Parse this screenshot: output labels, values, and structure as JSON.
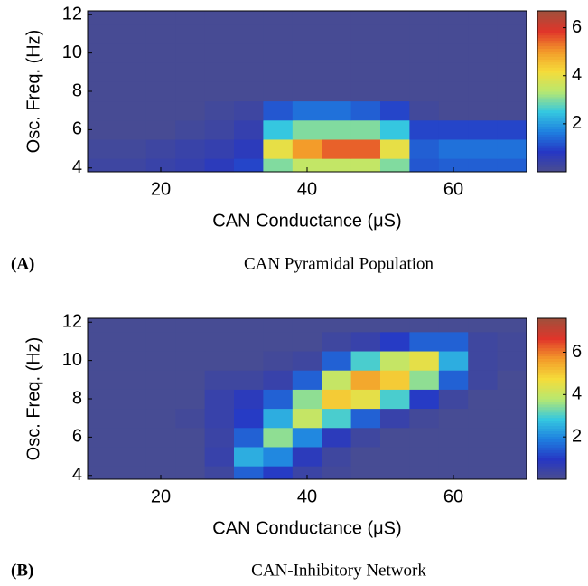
{
  "chart_data": [
    {
      "type": "heatmap",
      "panel_label": "(A)",
      "caption": "CAN Pyramidal Population",
      "x_label": "CAN Conductance (μS)",
      "y_label": "Osc. Freq. (Hz)",
      "xlim": [
        10,
        70
      ],
      "xticks": [
        20,
        40,
        60
      ],
      "ylim": [
        3.8,
        12.2
      ],
      "yticks": [
        4,
        6,
        8,
        10,
        12
      ],
      "x_bins": [
        10,
        14,
        18,
        22,
        26,
        30,
        34,
        38,
        42,
        46,
        50,
        54,
        58,
        62,
        66,
        70
      ],
      "y_bins": [
        3.8,
        4.5,
        5.5,
        6.5,
        7.5,
        8.5,
        9.5,
        10.5,
        11.5,
        12.2
      ],
      "z": [
        [
          0.3,
          0.3,
          0.4,
          0.5,
          0.7,
          1.0,
          3.0,
          3.5,
          3.5,
          3.5,
          3.0,
          1.2,
          1.3,
          1.3,
          1.3
        ],
        [
          0.2,
          0.2,
          0.3,
          0.4,
          0.5,
          0.7,
          4.0,
          5.0,
          5.5,
          5.5,
          4.0,
          1.3,
          1.5,
          1.5,
          1.5
        ],
        [
          0.1,
          0.1,
          0.1,
          0.2,
          0.3,
          0.5,
          2.5,
          3.0,
          3.0,
          3.0,
          2.5,
          1.0,
          1.0,
          1.0,
          1.0
        ],
        [
          0.1,
          0.1,
          0.1,
          0.1,
          0.2,
          0.3,
          1.2,
          1.5,
          1.5,
          1.3,
          1.0,
          0.2,
          0.1,
          0.1,
          0.1
        ],
        [
          0.1,
          0.1,
          0.1,
          0.1,
          0.1,
          0.1,
          0.1,
          0.1,
          0.1,
          0.1,
          0.1,
          0.1,
          0.1,
          0.1,
          0.1
        ],
        [
          0.1,
          0.1,
          0.1,
          0.1,
          0.1,
          0.1,
          0.1,
          0.1,
          0.1,
          0.1,
          0.1,
          0.1,
          0.1,
          0.1,
          0.1
        ],
        [
          0.1,
          0.1,
          0.1,
          0.1,
          0.1,
          0.1,
          0.1,
          0.1,
          0.1,
          0.1,
          0.1,
          0.1,
          0.1,
          0.1,
          0.1
        ],
        [
          0.1,
          0.1,
          0.1,
          0.1,
          0.1,
          0.1,
          0.1,
          0.1,
          0.1,
          0.1,
          0.1,
          0.1,
          0.1,
          0.1,
          0.1
        ],
        [
          0.1,
          0.1,
          0.1,
          0.1,
          0.1,
          0.1,
          0.1,
          0.1,
          0.1,
          0.1,
          0.1,
          0.1,
          0.1,
          0.1,
          0.1
        ]
      ],
      "zlim": [
        0,
        6.7
      ],
      "zticks": [
        2,
        4,
        6
      ],
      "colormap": [
        "#4b4e8e",
        "#2637c4",
        "#1f80e0",
        "#35c8e0",
        "#b8e870",
        "#f5dc3a",
        "#f39a2a",
        "#e0352a",
        "#a0503c"
      ]
    },
    {
      "type": "heatmap",
      "panel_label": "(B)",
      "caption": "CAN-Inhibitory Network",
      "x_label": "CAN Conductance (μS)",
      "y_label": "Osc. Freq. (Hz)",
      "xlim": [
        10,
        70
      ],
      "xticks": [
        20,
        40,
        60
      ],
      "ylim": [
        3.8,
        12.2
      ],
      "yticks": [
        4,
        6,
        8,
        10,
        12
      ],
      "x_bins": [
        10,
        14,
        18,
        22,
        26,
        30,
        34,
        38,
        42,
        46,
        50,
        54,
        58,
        62,
        66,
        70
      ],
      "y_bins": [
        3.8,
        4.5,
        5.5,
        6.5,
        7.5,
        8.5,
        9.5,
        10.5,
        11.5,
        12.2
      ],
      "z": [
        [
          0.1,
          0.1,
          0.1,
          0.1,
          0.3,
          1.5,
          1.0,
          0.4,
          0.2,
          0.1,
          0.1,
          0.1,
          0.1,
          0.1,
          0.1
        ],
        [
          0.1,
          0.1,
          0.1,
          0.1,
          0.5,
          2.5,
          2.0,
          0.8,
          0.3,
          0.1,
          0.1,
          0.1,
          0.1,
          0.1,
          0.1
        ],
        [
          0.1,
          0.1,
          0.1,
          0.1,
          0.4,
          1.5,
          3.5,
          2.0,
          0.8,
          0.3,
          0.1,
          0.1,
          0.1,
          0.1,
          0.1
        ],
        [
          0.1,
          0.1,
          0.1,
          0.2,
          0.5,
          1.0,
          2.5,
          4.0,
          3.0,
          1.5,
          0.5,
          0.2,
          0.1,
          0.1,
          0.1
        ],
        [
          0.1,
          0.1,
          0.1,
          0.1,
          0.5,
          0.8,
          1.5,
          3.5,
          5.0,
          4.5,
          3.0,
          1.0,
          0.3,
          0.1,
          0.1
        ],
        [
          0.1,
          0.1,
          0.1,
          0.1,
          0.3,
          0.3,
          0.5,
          1.5,
          4.0,
          5.5,
          5.0,
          3.5,
          1.5,
          0.3,
          0.1
        ],
        [
          0.1,
          0.1,
          0.1,
          0.1,
          0.1,
          0.1,
          0.2,
          0.3,
          1.5,
          3.0,
          4.0,
          4.5,
          2.5,
          0.3,
          0.2
        ],
        [
          0.1,
          0.1,
          0.1,
          0.1,
          0.1,
          0.1,
          0.1,
          0.1,
          0.3,
          0.5,
          1.0,
          1.5,
          1.5,
          0.3,
          0.2
        ],
        [
          0.1,
          0.1,
          0.1,
          0.1,
          0.1,
          0.1,
          0.1,
          0.1,
          0.1,
          0.1,
          0.1,
          0.1,
          0.1,
          0.1,
          0.1
        ]
      ],
      "zlim": [
        0,
        7.6
      ],
      "zticks": [
        2,
        4,
        6
      ],
      "colormap": [
        "#4b4e8e",
        "#2637c4",
        "#1f80e0",
        "#35c8e0",
        "#b8e870",
        "#f5dc3a",
        "#f39a2a",
        "#e0352a",
        "#a0503c"
      ]
    }
  ]
}
